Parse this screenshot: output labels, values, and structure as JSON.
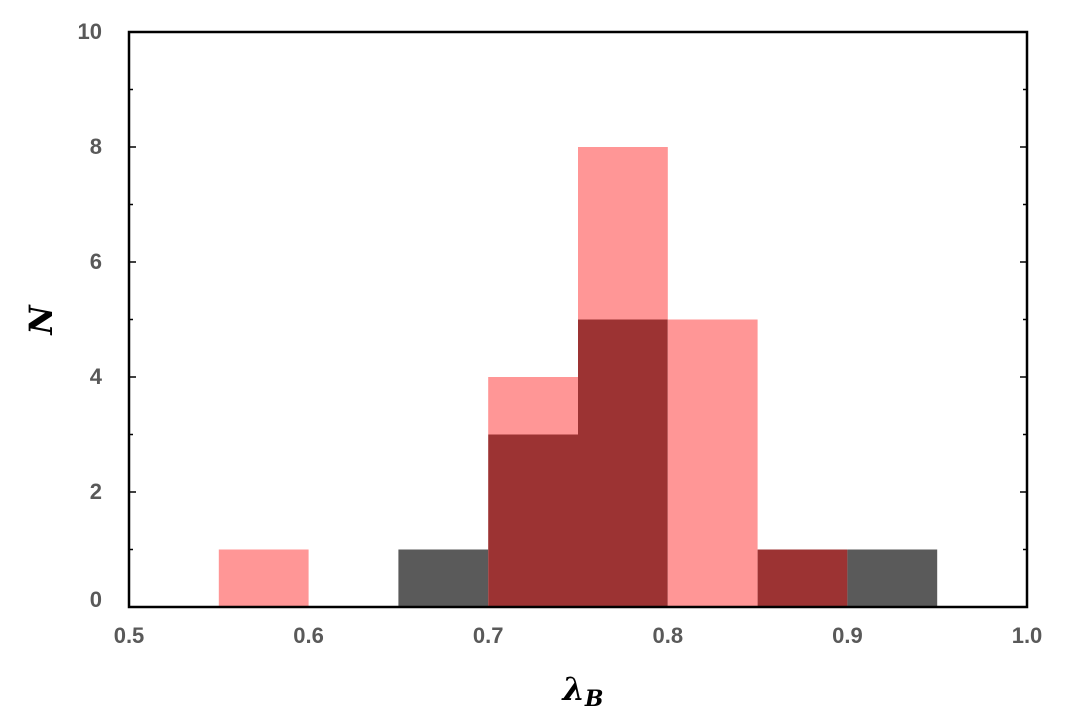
{
  "chart_data": {
    "type": "bar",
    "subtype": "overlaid histogram",
    "title": "",
    "xlabel": "λ",
    "xlabel_subscript": "B",
    "ylabel": "N",
    "xlim": [
      0.5,
      1.0
    ],
    "ylim": [
      0,
      10
    ],
    "xticks": [
      "0.5",
      "0.6",
      "0.7",
      "0.8",
      "0.9",
      "1.0"
    ],
    "yticks": [
      "0",
      "2",
      "4",
      "6",
      "8",
      "10"
    ],
    "bin_width": 0.05,
    "grid": false,
    "legend": "none",
    "series": [
      {
        "color": "#5a5a5a",
        "bins": [
          {
            "x0": 0.65,
            "x1": 0.7,
            "count": 1
          },
          {
            "x0": 0.7,
            "x1": 0.75,
            "count": 3
          },
          {
            "x0": 0.75,
            "x1": 0.8,
            "count": 5
          },
          {
            "x0": 0.85,
            "x1": 0.9,
            "count": 1
          },
          {
            "x0": 0.9,
            "x1": 0.95,
            "count": 1
          }
        ]
      },
      {
        "color": "#ff9696",
        "bins": [
          {
            "x0": 0.55,
            "x1": 0.6,
            "count": 1
          },
          {
            "x0": 0.7,
            "x1": 0.75,
            "count": 4
          },
          {
            "x0": 0.75,
            "x1": 0.8,
            "count": 8
          },
          {
            "x0": 0.8,
            "x1": 0.85,
            "count": 5
          },
          {
            "x0": 0.85,
            "x1": 0.9,
            "count": 1
          }
        ]
      }
    ],
    "overlap_color": "#9c3333"
  }
}
